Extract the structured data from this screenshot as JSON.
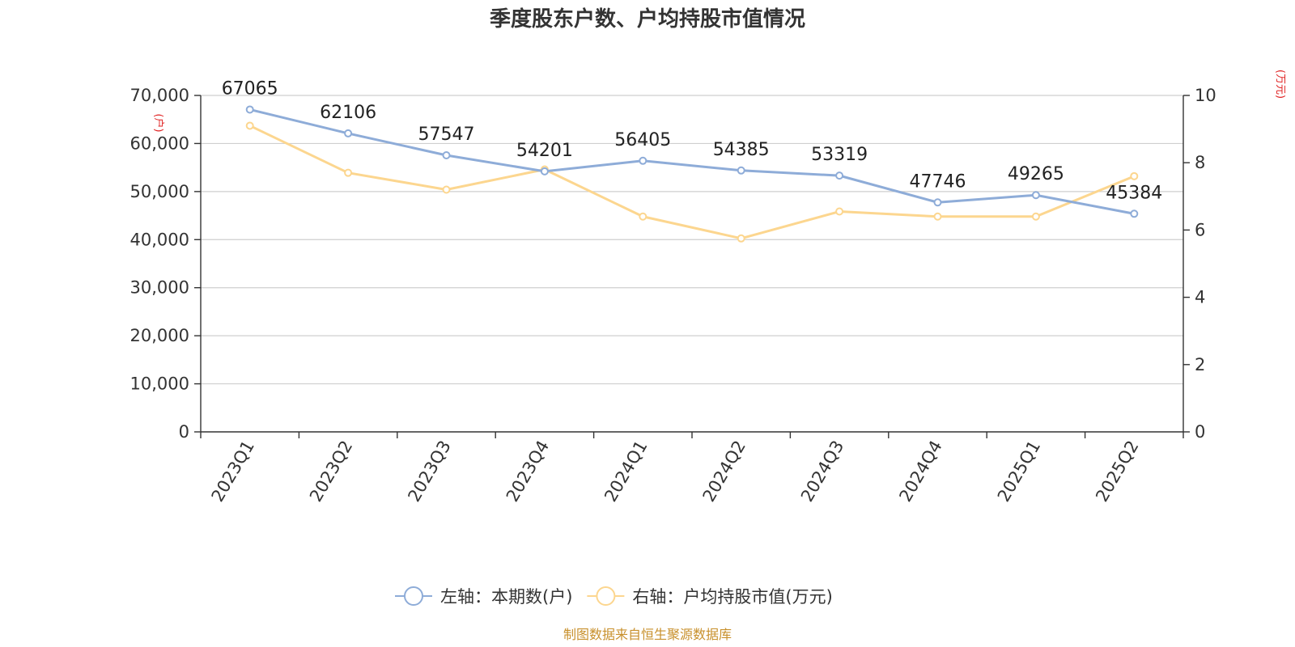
{
  "chart_data": {
    "type": "line",
    "title": "季度股东户数、户均持股市值情况",
    "categories": [
      "2023Q1",
      "2023Q2",
      "2023Q3",
      "2023Q4",
      "2024Q1",
      "2024Q2",
      "2024Q3",
      "2024Q4",
      "2025Q1",
      "2025Q2"
    ],
    "series": [
      {
        "name": "左轴：本期数(户)",
        "axis": "left",
        "color": "#8eacd8",
        "values": [
          67065,
          62106,
          57547,
          54201,
          56405,
          54385,
          53319,
          47746,
          49265,
          45384
        ],
        "show_labels": true
      },
      {
        "name": "右轴：户均持股市值(万元)",
        "axis": "right",
        "color": "#fcd68f",
        "values": [
          9.1,
          7.7,
          7.2,
          7.8,
          6.4,
          5.75,
          6.55,
          6.4,
          6.4,
          7.6
        ],
        "show_labels": false
      }
    ],
    "y_left": {
      "label": "(户)",
      "min": 0,
      "max": 70000,
      "ticks": [
        "0",
        "10,000",
        "20,000",
        "30,000",
        "40,000",
        "50,000",
        "60,000",
        "70,000"
      ]
    },
    "y_right": {
      "label": "(万元)",
      "min": 0,
      "max": 10,
      "ticks": [
        "0",
        "2",
        "4",
        "6",
        "8",
        "10"
      ]
    },
    "grid": true,
    "legend_position": "bottom"
  },
  "source": "制图数据来自恒生聚源数据库"
}
